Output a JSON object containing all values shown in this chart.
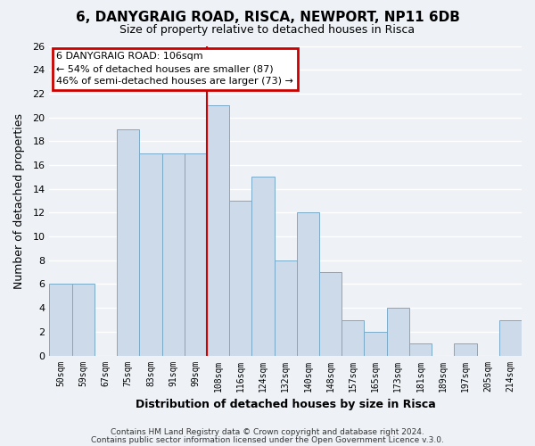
{
  "title": "6, DANYGRAIG ROAD, RISCA, NEWPORT, NP11 6DB",
  "subtitle": "Size of property relative to detached houses in Risca",
  "xlabel": "Distribution of detached houses by size in Risca",
  "ylabel": "Number of detached properties",
  "bar_color": "#cddaea",
  "bar_edge_color": "#7aaac8",
  "bins": [
    "50sqm",
    "59sqm",
    "67sqm",
    "75sqm",
    "83sqm",
    "91sqm",
    "99sqm",
    "108sqm",
    "116sqm",
    "124sqm",
    "132sqm",
    "140sqm",
    "148sqm",
    "157sqm",
    "165sqm",
    "173sqm",
    "181sqm",
    "189sqm",
    "197sqm",
    "205sqm",
    "214sqm"
  ],
  "values": [
    6,
    6,
    0,
    19,
    17,
    17,
    17,
    21,
    13,
    15,
    8,
    12,
    7,
    3,
    2,
    4,
    1,
    0,
    1,
    0,
    3
  ],
  "highlight_bar_index": 7,
  "highlight_color": "#cc0000",
  "ylim": [
    0,
    26
  ],
  "yticks": [
    0,
    2,
    4,
    6,
    8,
    10,
    12,
    14,
    16,
    18,
    20,
    22,
    24,
    26
  ],
  "annotation_title": "6 DANYGRAIG ROAD: 106sqm",
  "annotation_line1": "← 54% of detached houses are smaller (87)",
  "annotation_line2": "46% of semi-detached houses are larger (73) →",
  "annotation_box_color": "#ffffff",
  "annotation_box_edge": "#cc0000",
  "footer1": "Contains HM Land Registry data © Crown copyright and database right 2024.",
  "footer2": "Contains public sector information licensed under the Open Government Licence v.3.0.",
  "bg_color": "#eef2f7",
  "plot_bg_color": "#eef2f7",
  "grid_color": "#ffffff"
}
